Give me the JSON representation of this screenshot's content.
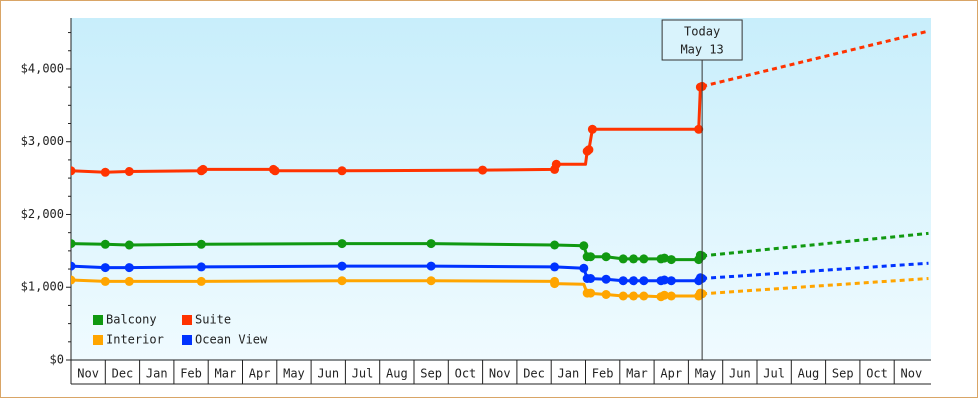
{
  "chart_data": {
    "type": "line",
    "title": "",
    "xlabel": "",
    "ylabel": "",
    "ylim": [
      0,
      4700
    ],
    "y_ticks": [
      {
        "value": 0,
        "label": "$0"
      },
      {
        "value": 1000,
        "label": "$1,000"
      },
      {
        "value": 2000,
        "label": "$2,000"
      },
      {
        "value": 3000,
        "label": "$3,000"
      },
      {
        "value": 4000,
        "label": "$4,000"
      }
    ],
    "x_months": [
      "Nov",
      "Dec",
      "Jan",
      "Feb",
      "Mar",
      "Apr",
      "May",
      "Jun",
      "Jul",
      "Aug",
      "Sep",
      "Oct",
      "Nov",
      "Dec",
      "Jan",
      "Feb",
      "Mar",
      "Apr",
      "May",
      "Jun",
      "Jul",
      "Aug",
      "Sep",
      "Oct",
      "Nov"
    ],
    "today": {
      "line1": "Today",
      "line2": "May 13",
      "month_index": 18.4
    },
    "grid": false,
    "background": [
      "#c8eefb",
      "#f0fbff"
    ],
    "legend_position": "bottom-left",
    "legend": [
      {
        "name": "Balcony",
        "color": "#119911"
      },
      {
        "name": "Suite",
        "color": "#ff3300"
      },
      {
        "name": "Interior",
        "color": "#ffa500"
      },
      {
        "name": "Ocean View",
        "color": "#0033ff"
      }
    ],
    "series": [
      {
        "name": "Suite",
        "color": "#ff3300",
        "points": [
          [
            0,
            2600
          ],
          [
            1,
            2580
          ],
          [
            1.7,
            2590
          ],
          [
            3.8,
            2600
          ],
          [
            3.85,
            2620
          ],
          [
            5.9,
            2620
          ],
          [
            5.95,
            2600
          ],
          [
            7.9,
            2600
          ],
          [
            12,
            2610
          ],
          [
            14.1,
            2620
          ],
          [
            14.15,
            2690
          ],
          [
            15,
            2690
          ],
          [
            15.05,
            2870
          ],
          [
            15.1,
            2890
          ],
          [
            15.2,
            3170
          ],
          [
            18.3,
            3170
          ],
          [
            18.35,
            3750
          ],
          [
            18.4,
            3760
          ]
        ],
        "markers": [
          [
            0,
            2600
          ],
          [
            1,
            2580
          ],
          [
            1.7,
            2590
          ],
          [
            3.8,
            2600
          ],
          [
            3.85,
            2620
          ],
          [
            5.9,
            2620
          ],
          [
            5.95,
            2600
          ],
          [
            7.9,
            2600
          ],
          [
            12,
            2610
          ],
          [
            14.1,
            2620
          ],
          [
            14.15,
            2690
          ],
          [
            15.05,
            2870
          ],
          [
            15.1,
            2890
          ],
          [
            15.2,
            3170
          ],
          [
            18.3,
            3170
          ],
          [
            18.35,
            3750
          ],
          [
            18.4,
            3760
          ]
        ],
        "projection": [
          [
            18.4,
            3760
          ],
          [
            25,
            4520
          ]
        ]
      },
      {
        "name": "Balcony",
        "color": "#119911",
        "points": [
          [
            0,
            1600
          ],
          [
            1,
            1590
          ],
          [
            1.7,
            1580
          ],
          [
            3.8,
            1590
          ],
          [
            7.9,
            1600
          ],
          [
            10.5,
            1600
          ],
          [
            14.1,
            1580
          ],
          [
            14.95,
            1570
          ],
          [
            15.05,
            1420
          ],
          [
            15.6,
            1420
          ],
          [
            16.1,
            1390
          ],
          [
            16.4,
            1390
          ],
          [
            16.7,
            1390
          ],
          [
            17.2,
            1390
          ],
          [
            17.5,
            1380
          ],
          [
            18.3,
            1380
          ],
          [
            18.4,
            1430
          ]
        ],
        "markers": [
          [
            0,
            1600
          ],
          [
            1,
            1590
          ],
          [
            1.7,
            1580
          ],
          [
            3.8,
            1590
          ],
          [
            7.9,
            1600
          ],
          [
            10.5,
            1600
          ],
          [
            14.1,
            1580
          ],
          [
            14.95,
            1570
          ],
          [
            15.05,
            1420
          ],
          [
            15.15,
            1420
          ],
          [
            15.6,
            1420
          ],
          [
            16.1,
            1390
          ],
          [
            16.4,
            1390
          ],
          [
            16.7,
            1390
          ],
          [
            17.2,
            1390
          ],
          [
            17.3,
            1400
          ],
          [
            17.5,
            1380
          ],
          [
            18.3,
            1380
          ],
          [
            18.35,
            1440
          ],
          [
            18.4,
            1430
          ]
        ],
        "projection": [
          [
            18.4,
            1430
          ],
          [
            25,
            1740
          ]
        ]
      },
      {
        "name": "Ocean View",
        "color": "#0033ff",
        "points": [
          [
            0,
            1290
          ],
          [
            1,
            1270
          ],
          [
            1.7,
            1270
          ],
          [
            3.8,
            1280
          ],
          [
            7.9,
            1290
          ],
          [
            10.5,
            1290
          ],
          [
            14.1,
            1280
          ],
          [
            14.95,
            1260
          ],
          [
            15.05,
            1120
          ],
          [
            15.6,
            1110
          ],
          [
            16.1,
            1090
          ],
          [
            16.4,
            1090
          ],
          [
            16.7,
            1090
          ],
          [
            17.2,
            1090
          ],
          [
            17.5,
            1090
          ],
          [
            18.3,
            1090
          ],
          [
            18.4,
            1120
          ]
        ],
        "markers": [
          [
            0,
            1290
          ],
          [
            1,
            1270
          ],
          [
            1.7,
            1270
          ],
          [
            3.8,
            1280
          ],
          [
            7.9,
            1290
          ],
          [
            10.5,
            1290
          ],
          [
            14.1,
            1280
          ],
          [
            14.95,
            1260
          ],
          [
            15.05,
            1120
          ],
          [
            15.15,
            1120
          ],
          [
            15.6,
            1110
          ],
          [
            16.1,
            1090
          ],
          [
            16.4,
            1090
          ],
          [
            16.7,
            1090
          ],
          [
            17.2,
            1090
          ],
          [
            17.3,
            1100
          ],
          [
            17.5,
            1090
          ],
          [
            18.3,
            1090
          ],
          [
            18.35,
            1130
          ],
          [
            18.4,
            1120
          ]
        ],
        "projection": [
          [
            18.4,
            1120
          ],
          [
            25,
            1330
          ]
        ]
      },
      {
        "name": "Interior",
        "color": "#ffa500",
        "points": [
          [
            0,
            1100
          ],
          [
            1,
            1080
          ],
          [
            1.7,
            1080
          ],
          [
            3.8,
            1080
          ],
          [
            7.9,
            1090
          ],
          [
            10.5,
            1090
          ],
          [
            14.1,
            1080
          ],
          [
            14.1,
            1050
          ],
          [
            14.95,
            1040
          ],
          [
            15.05,
            920
          ],
          [
            15.6,
            900
          ],
          [
            16.1,
            880
          ],
          [
            16.4,
            880
          ],
          [
            16.7,
            880
          ],
          [
            17.2,
            870
          ],
          [
            17.5,
            880
          ],
          [
            18.3,
            880
          ],
          [
            18.4,
            910
          ]
        ],
        "markers": [
          [
            0,
            1100
          ],
          [
            1,
            1080
          ],
          [
            1.7,
            1080
          ],
          [
            3.8,
            1080
          ],
          [
            7.9,
            1090
          ],
          [
            10.5,
            1090
          ],
          [
            14.1,
            1080
          ],
          [
            14.1,
            1050
          ],
          [
            15.05,
            920
          ],
          [
            15.15,
            920
          ],
          [
            15.6,
            900
          ],
          [
            16.1,
            880
          ],
          [
            16.4,
            880
          ],
          [
            16.7,
            880
          ],
          [
            17.2,
            870
          ],
          [
            17.3,
            890
          ],
          [
            17.5,
            880
          ],
          [
            18.3,
            880
          ],
          [
            18.35,
            920
          ],
          [
            18.4,
            910
          ]
        ],
        "projection": [
          [
            18.4,
            910
          ],
          [
            25,
            1120
          ]
        ]
      }
    ]
  }
}
